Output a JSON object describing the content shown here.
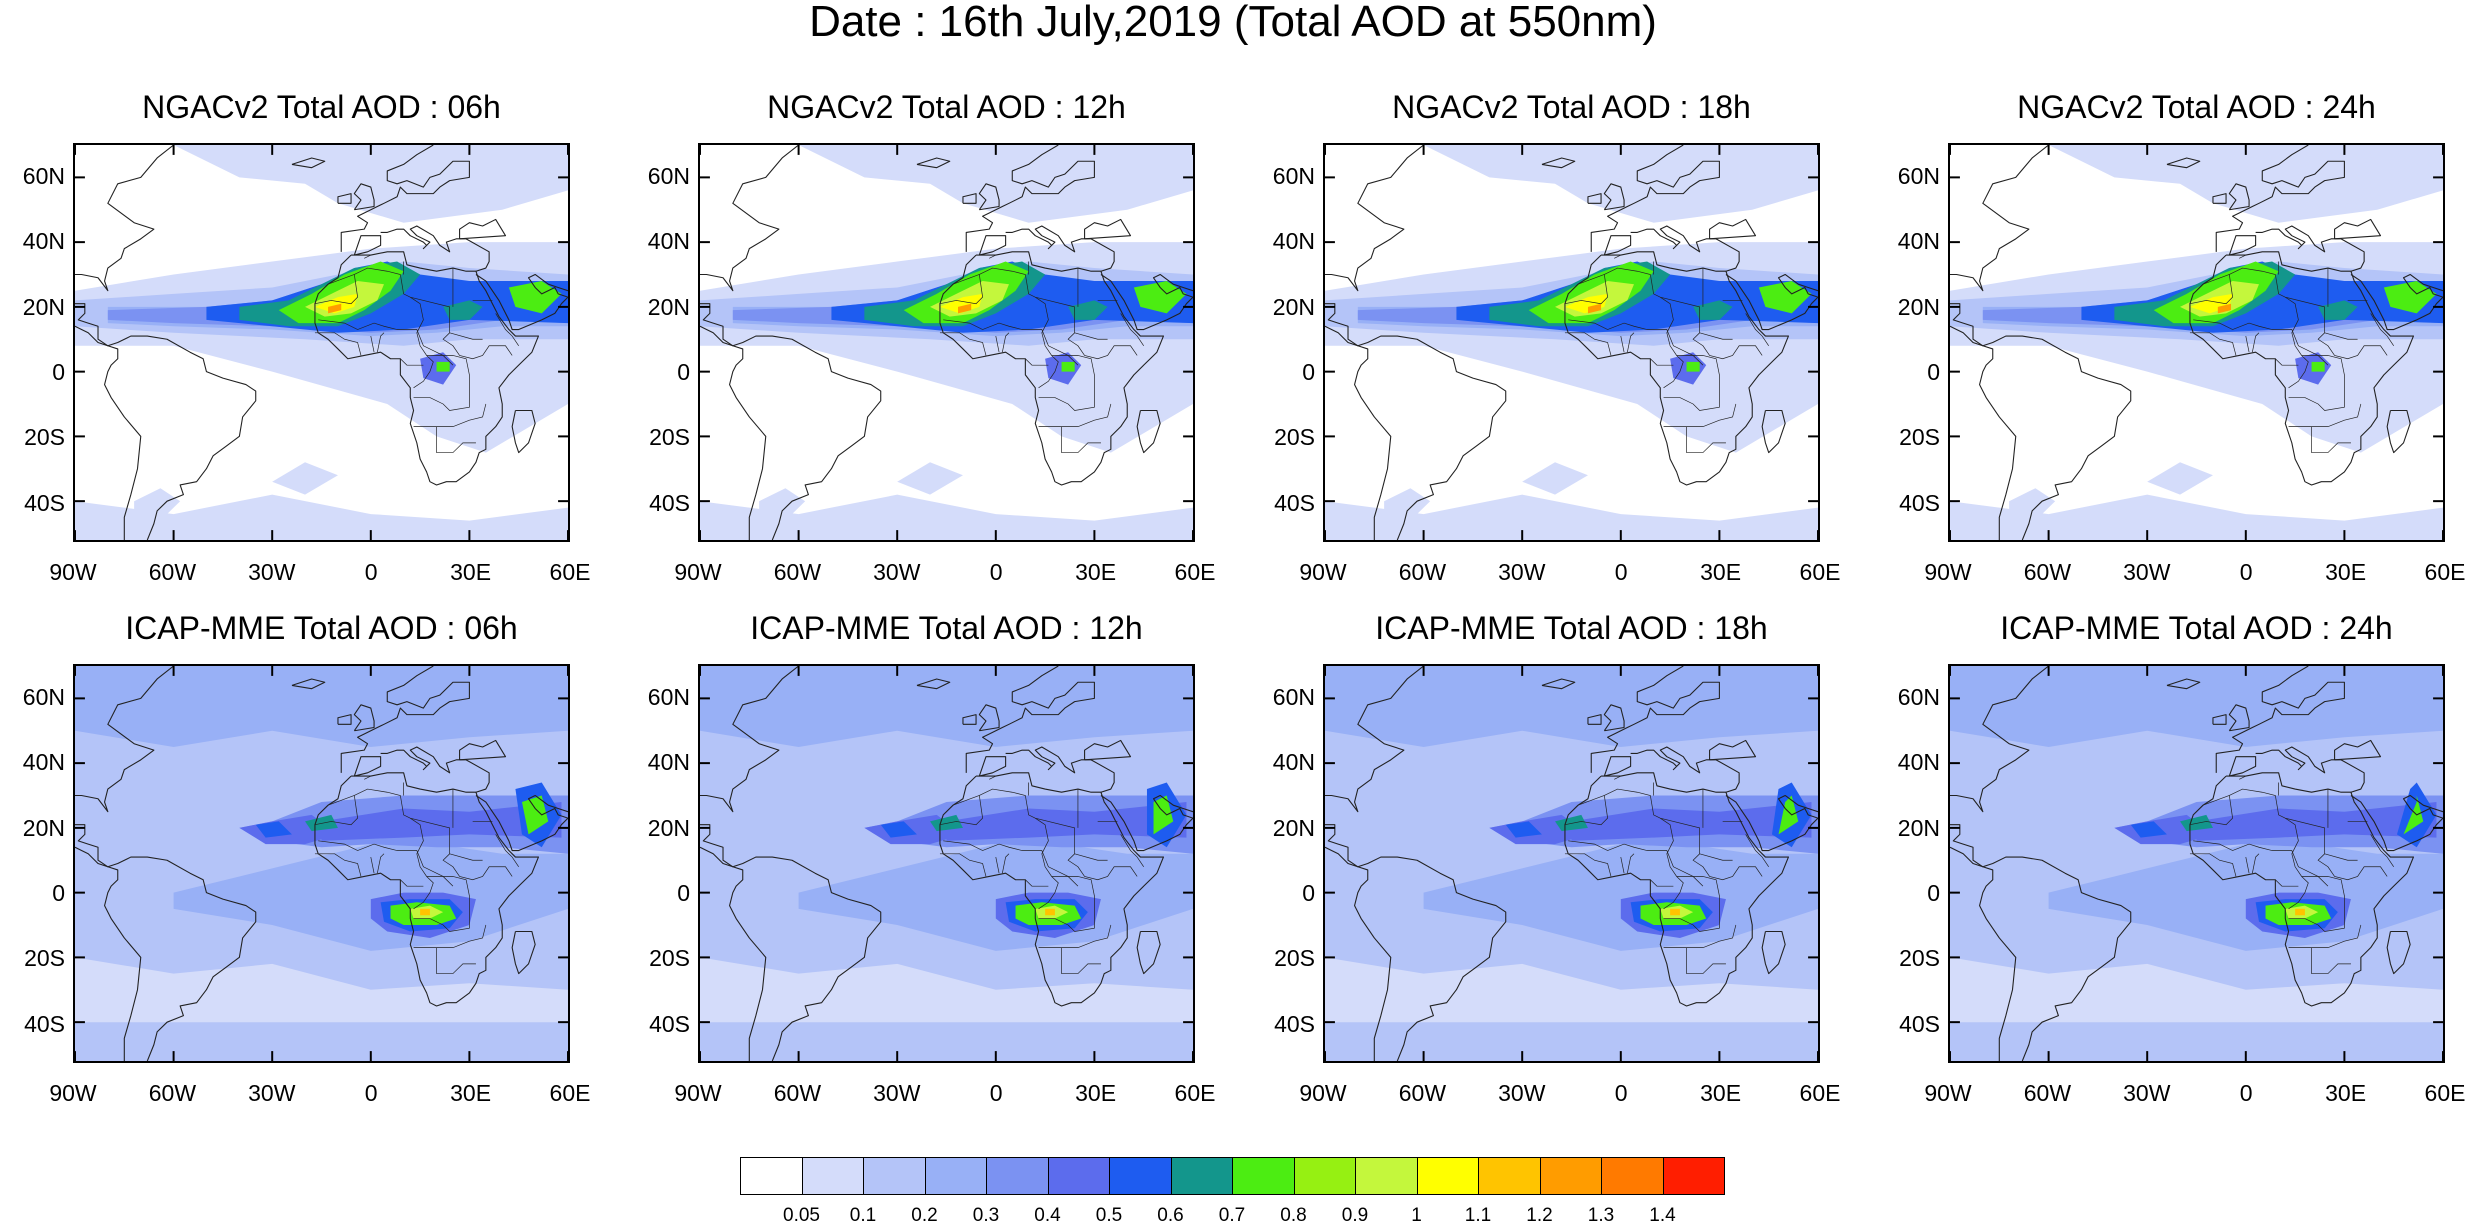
{
  "figure": {
    "title": "Date : 16th July,2019 (Total AOD at 550nm)"
  },
  "panels": [
    {
      "title": "NGACv2 Total AOD : 06h",
      "model": "ngac"
    },
    {
      "title": "NGACv2 Total AOD : 12h",
      "model": "ngac"
    },
    {
      "title": "NGACv2 Total AOD : 18h",
      "model": "ngac"
    },
    {
      "title": "NGACv2 Total AOD : 24h",
      "model": "ngac"
    },
    {
      "title": "ICAP-MME Total AOD : 06h",
      "model": "icap"
    },
    {
      "title": "ICAP-MME Total AOD : 12h",
      "model": "icap"
    },
    {
      "title": "ICAP-MME Total AOD : 18h",
      "model": "icap"
    },
    {
      "title": "ICAP-MME Total AOD : 24h",
      "model": "icap"
    }
  ],
  "axes": {
    "lat_labels": [
      "60N",
      "40N",
      "20N",
      "0",
      "20S",
      "40S"
    ],
    "lat_values": [
      60,
      40,
      20,
      0,
      -20,
      -40
    ],
    "lon_labels": [
      "90W",
      "60W",
      "30W",
      "0",
      "30E",
      "60E"
    ],
    "lon_values": [
      -90,
      -60,
      -30,
      0,
      30,
      60
    ],
    "lat_range": [
      -52,
      70
    ],
    "lon_range": [
      -90,
      60
    ]
  },
  "colorbar": {
    "labels": [
      "0.05",
      "0.1",
      "0.2",
      "0.3",
      "0.4",
      "0.5",
      "0.6",
      "0.7",
      "0.8",
      "0.9",
      "1",
      "1.1",
      "1.2",
      "1.3",
      "1.4"
    ],
    "colors": [
      "#ffffff",
      "#d4dcfa",
      "#b4c4f8",
      "#98b0f6",
      "#7b92f2",
      "#5c6ced",
      "#1e5cf0",
      "#13968c",
      "#4ced12",
      "#96f012",
      "#c4f73c",
      "#ffff00",
      "#ffc400",
      "#ff9c00",
      "#ff7a00",
      "#ff1e00"
    ]
  },
  "legend_colors": {
    "coast": "#222222",
    "background": "#ffffff"
  }
}
